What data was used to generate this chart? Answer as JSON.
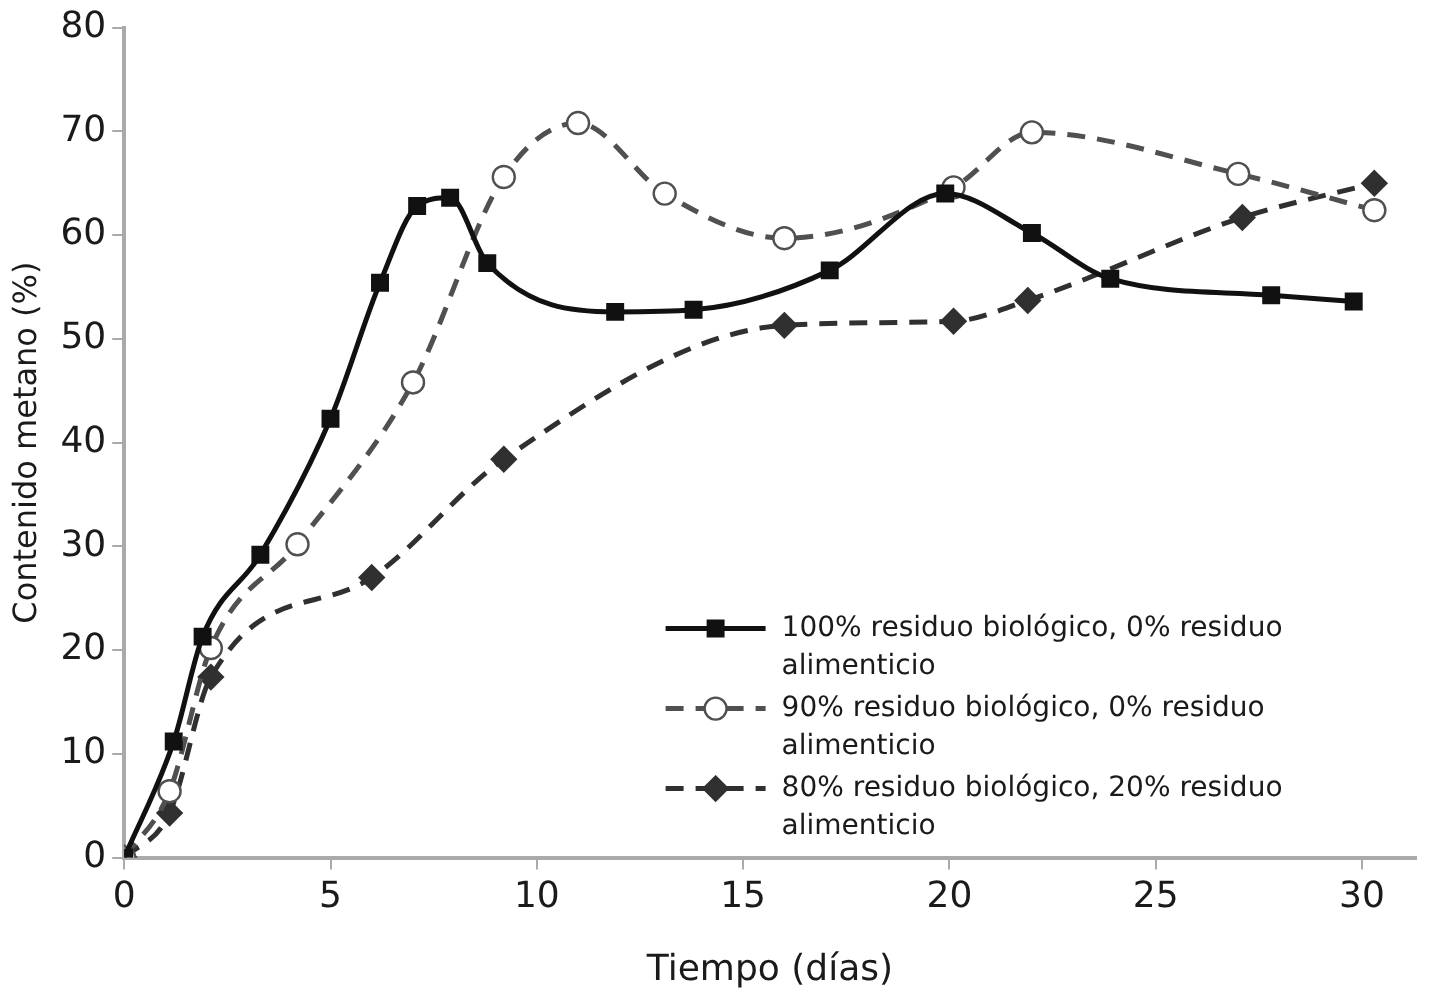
{
  "chart_data": {
    "type": "line",
    "xlabel": "Tiempo (días)",
    "ylabel": "Contenido metano (%)",
    "xlim": [
      0,
      31.3
    ],
    "xticks": [
      0,
      5,
      10,
      15,
      20,
      25,
      30
    ],
    "ylim": [
      0,
      80
    ],
    "yticks": [
      0,
      10,
      20,
      30,
      40,
      50,
      60,
      70,
      80
    ],
    "grid": false,
    "legend": "bottom right",
    "series": [
      {
        "name": "100% residuo biológico, 0% residuo alimenticio",
        "color": "#111111",
        "marker": "square",
        "line_style": "solid",
        "x": [
          0,
          1.2,
          1.9,
          3.3,
          5,
          6.2,
          7.1,
          7.9,
          8.8,
          11.9,
          13.8,
          17.1,
          19.9,
          22,
          23.9,
          27.8,
          29.8
        ],
        "values": [
          0,
          11.2,
          21.3,
          29.2,
          42.3,
          55.4,
          62.8,
          63.6,
          57.3,
          52.6,
          52.8,
          56.6,
          64,
          60.2,
          55.8,
          54.2,
          53.6
        ]
      },
      {
        "name": "90% residuo biológico, 0% residuo alimenticio",
        "color": "#505050",
        "marker": "circle",
        "line_style": "dashed",
        "x": [
          0,
          1.1,
          2.1,
          4.2,
          7,
          9.2,
          11,
          13.1,
          16,
          20.1,
          22,
          27,
          30.3
        ],
        "values": [
          0,
          6.4,
          20.2,
          30.2,
          45.8,
          65.6,
          70.8,
          64,
          59.7,
          64.6,
          69.9,
          65.9,
          62.4
        ]
      },
      {
        "name": "80% residuo biológico, 20% residuo alimenticio",
        "color": "#303030",
        "marker": "diamond",
        "line_style": "dashed",
        "x": [
          0,
          1.1,
          2.1,
          6,
          9.2,
          16,
          20.1,
          21.9,
          27.1,
          30.3
        ],
        "values": [
          0,
          4.3,
          17.4,
          27,
          38.4,
          51.3,
          51.7,
          53.7,
          61.7,
          65
        ]
      }
    ]
  }
}
